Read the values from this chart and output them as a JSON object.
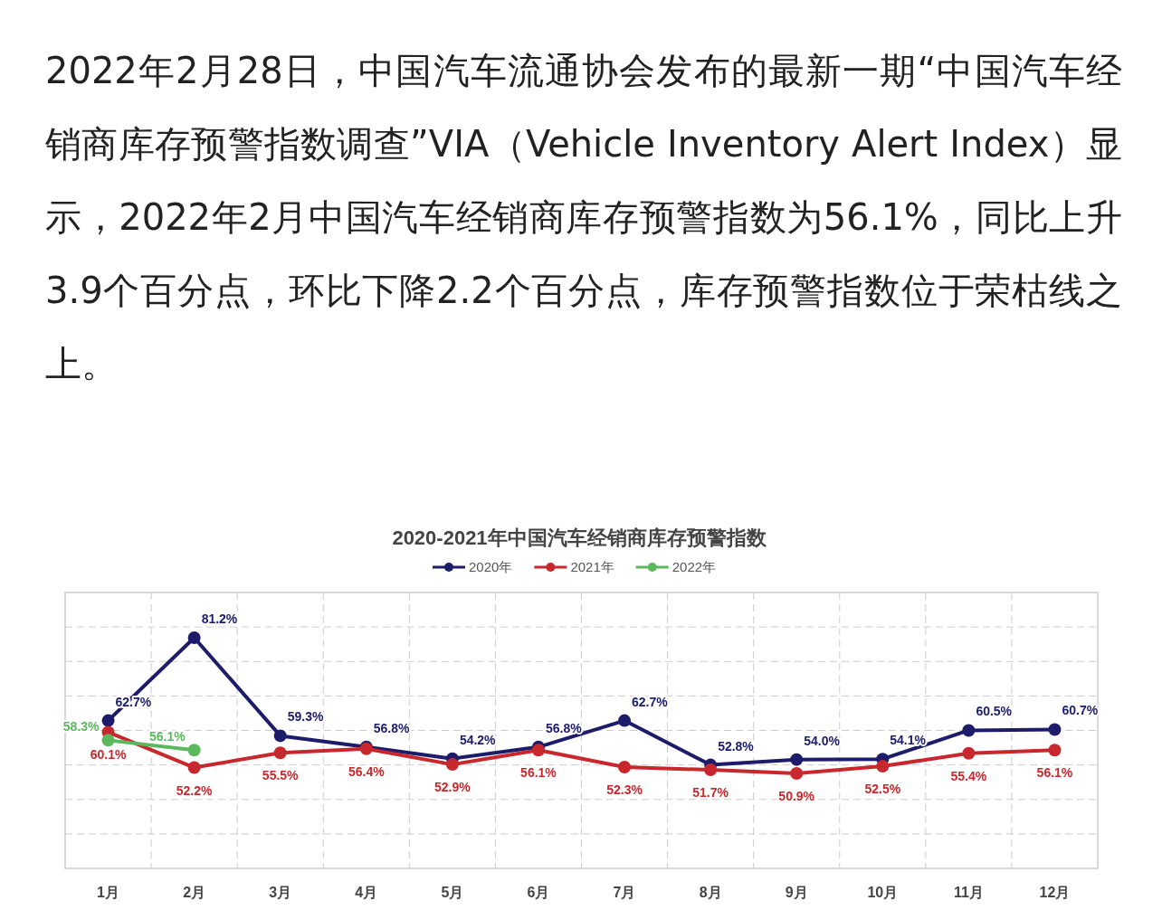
{
  "chart_data": {
    "type": "line",
    "title": "2020-2021年中国汽车经销商库存预警指数",
    "annotations": [
      "2022年2月28日，中国汽车流通协会发布的最新一期“中国汽车经销商库存预警指数调查”VIA（Vehicle Inventory Alert Index）显示，2022年2月中国汽车经销商库存预警指数为56.1%，同比上升3.9个百分点，环比下降2.2个百分点，库存预警指数位于荣枯线之上。"
    ],
    "categories": [
      "1月",
      "2月",
      "3月",
      "4月",
      "5月",
      "6月",
      "7月",
      "8月",
      "9月",
      "10月",
      "11月",
      "12月"
    ],
    "series": [
      {
        "name": "2020年",
        "color": "#1c1c6b",
        "values": [
          62.7,
          81.2,
          59.3,
          56.8,
          54.2,
          56.8,
          62.7,
          52.8,
          54.0,
          54.1,
          60.5,
          60.7
        ],
        "value_labels": [
          "62.7%",
          "81.2%",
          "59.3%",
          "56.8%",
          "54.2%",
          "56.8%",
          "62.7%",
          "52.8%",
          "54.0%",
          "54.1%",
          "60.5%",
          "60.7%"
        ]
      },
      {
        "name": "2021年",
        "color": "#c8282d",
        "values": [
          60.1,
          52.2,
          55.5,
          56.4,
          52.9,
          56.1,
          52.3,
          51.7,
          50.9,
          52.5,
          55.4,
          56.1
        ],
        "value_labels": [
          "60.1%",
          "52.2%",
          "55.5%",
          "56.4%",
          "52.9%",
          "56.1%",
          "52.3%",
          "51.7%",
          "50.9%",
          "52.5%",
          "55.4%",
          "56.1%"
        ]
      },
      {
        "name": "2022年",
        "color": "#5cb85c",
        "values": [
          58.3,
          56.1,
          null,
          null,
          null,
          null,
          null,
          null,
          null,
          null,
          null,
          null
        ],
        "value_labels": [
          "58.3%",
          "56.1%",
          null,
          null,
          null,
          null,
          null,
          null,
          null,
          null,
          null,
          null
        ]
      }
    ],
    "grid": true,
    "legend": "top",
    "marker": "circle",
    "line_style": "solid"
  }
}
